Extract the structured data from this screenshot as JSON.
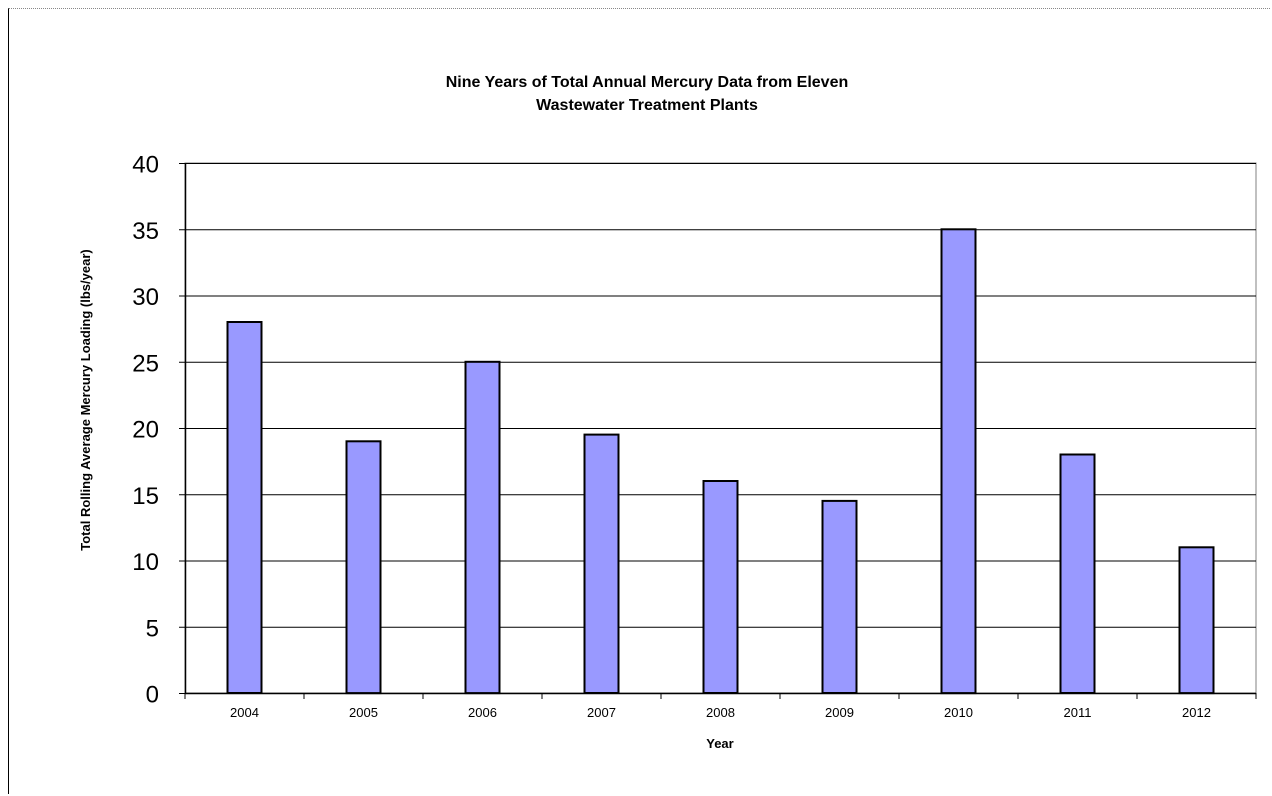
{
  "chart_data": {
    "type": "bar",
    "title_lines": [
      "Nine Years of Total Annual Mercury Data from Eleven",
      "Wastewater Treatment Plants"
    ],
    "xlabel": "Year",
    "ylabel": "Total Rolling Average Mercury Loading (lbs/year)",
    "categories": [
      "2004",
      "2005",
      "2006",
      "2007",
      "2008",
      "2009",
      "2010",
      "2011",
      "2012"
    ],
    "values": [
      28,
      19,
      25,
      19.5,
      16,
      14.5,
      35,
      18,
      11
    ],
    "ylim": [
      0,
      40
    ],
    "yticks": [
      0,
      5,
      10,
      15,
      20,
      25,
      30,
      35,
      40
    ],
    "grid": true,
    "legend": "none",
    "bar_color": "#9999ff",
    "bar_edge_color": "#000000"
  }
}
